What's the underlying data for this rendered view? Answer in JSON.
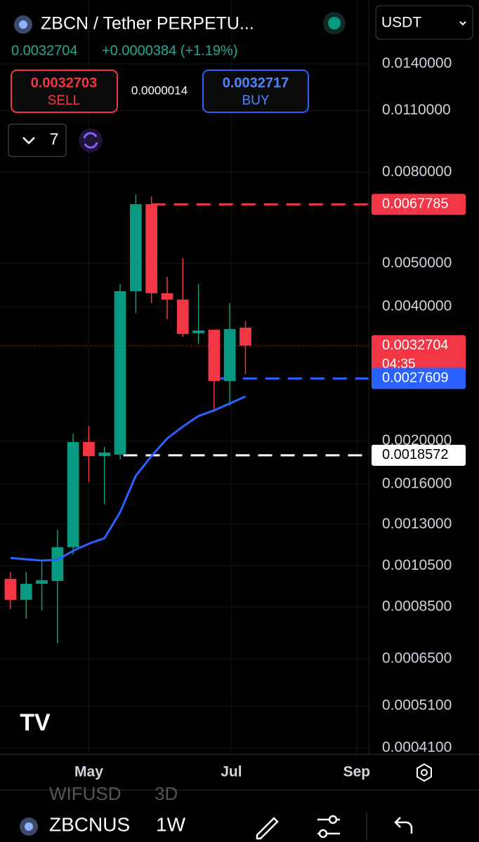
{
  "header": {
    "symbol": "ZBCN / Tether PERPETU...",
    "last_price": "0.0032704",
    "change": "+0.0000384 (+1.19%)",
    "currency": "USDT",
    "sell_price": "0.0032703",
    "sell_label": "SELL",
    "spread": "0.0000014",
    "buy_price": "0.0032717",
    "buy_label": "BUY",
    "indicator_count": "7"
  },
  "chart_data": {
    "type": "candlestick",
    "log_scale": true,
    "grid": true,
    "up_color": "#089981",
    "down_color": "#f23645",
    "xlim": [
      -0.67,
      22.87
    ],
    "xticks": [
      {
        "value": 5,
        "label": "May"
      },
      {
        "value": 14.1,
        "label": "Jul"
      },
      {
        "value": 22.1,
        "label": "Sep"
      }
    ],
    "ylim": [
      0.0004,
      0.016
    ],
    "yticks": [
      {
        "value": 0.014,
        "label": "0.0140000"
      },
      {
        "value": 0.011,
        "label": "0.0110000"
      },
      {
        "value": 0.008,
        "label": "0.0080000"
      },
      {
        "value": 0.005,
        "label": "0.0050000"
      },
      {
        "value": 0.004,
        "label": "0.0040000"
      },
      {
        "value": 0.002,
        "label": "0.0020000"
      },
      {
        "value": 0.0016,
        "label": "0.0016000"
      },
      {
        "value": 0.0013,
        "label": "0.0013000"
      },
      {
        "value": 0.00105,
        "label": "0.0010500"
      },
      {
        "value": 0.00085,
        "label": "0.0008500"
      },
      {
        "value": 0.00065,
        "label": "0.0006500"
      },
      {
        "value": 0.00051,
        "label": "0.0005100"
      },
      {
        "value": 0.00041,
        "label": "0.0004100"
      }
    ],
    "candles": {
      "open": [
        0.000982,
        0.000881,
        0.000957,
        0.000971,
        0.001156,
        0.001989,
        0.00185,
        0.001864,
        0.004332,
        0.006784,
        0.004285,
        0.004147,
        0.003486,
        0.00355,
        0.002725,
        0.003589
      ],
      "high": [
        0.001018,
        0.001018,
        0.001075,
        0.001265,
        0.002077,
        0.002162,
        0.00194,
        0.004493,
        0.007139,
        0.007062,
        0.004658,
        0.005137,
        0.004493,
        0.00355,
        0.004073,
        0.003707
      ],
      "low": [
        0.00084,
        0.000799,
        0.000834,
        0.000704,
        0.001114,
        0.001618,
        0.001446,
        0.001817,
        0.003871,
        0.004073,
        0.003748,
        0.003423,
        0.003302,
        0.002323,
        0.0024,
        0.002825
      ],
      "close": [
        0.000881,
        0.000957,
        0.000975,
        0.001156,
        0.001989,
        0.00185,
        0.001884,
        0.004332,
        0.006784,
        0.004285,
        0.004147,
        0.003473,
        0.003537,
        0.002725,
        0.003563,
        0.0032704
      ]
    },
    "ma": {
      "color": "#2962ff",
      "values": [
        0.001094,
        0.001086,
        0.001079,
        0.001083,
        0.001135,
        0.001177,
        0.001211,
        0.001385,
        0.001671,
        0.00185,
        0.002025,
        0.002154,
        0.002274,
        0.002342,
        0.002427,
        0.002516
      ]
    },
    "price_lines": [
      {
        "value": 0.0067785,
        "color": "#f23645",
        "start": 9
      },
      {
        "value": 0.0032704,
        "color": "#f23645",
        "countdown": "04:35"
      },
      {
        "value": 0.0027609,
        "color": "#2962ff",
        "start": 13.4
      },
      {
        "value": 0.0018572,
        "color": "#ffffff",
        "start": 7.2
      }
    ]
  },
  "footer": {
    "ghost_symbol": "WIFUSD",
    "ghost_interval": "3D",
    "symbol": "ZBCNUS",
    "interval": "1W"
  }
}
